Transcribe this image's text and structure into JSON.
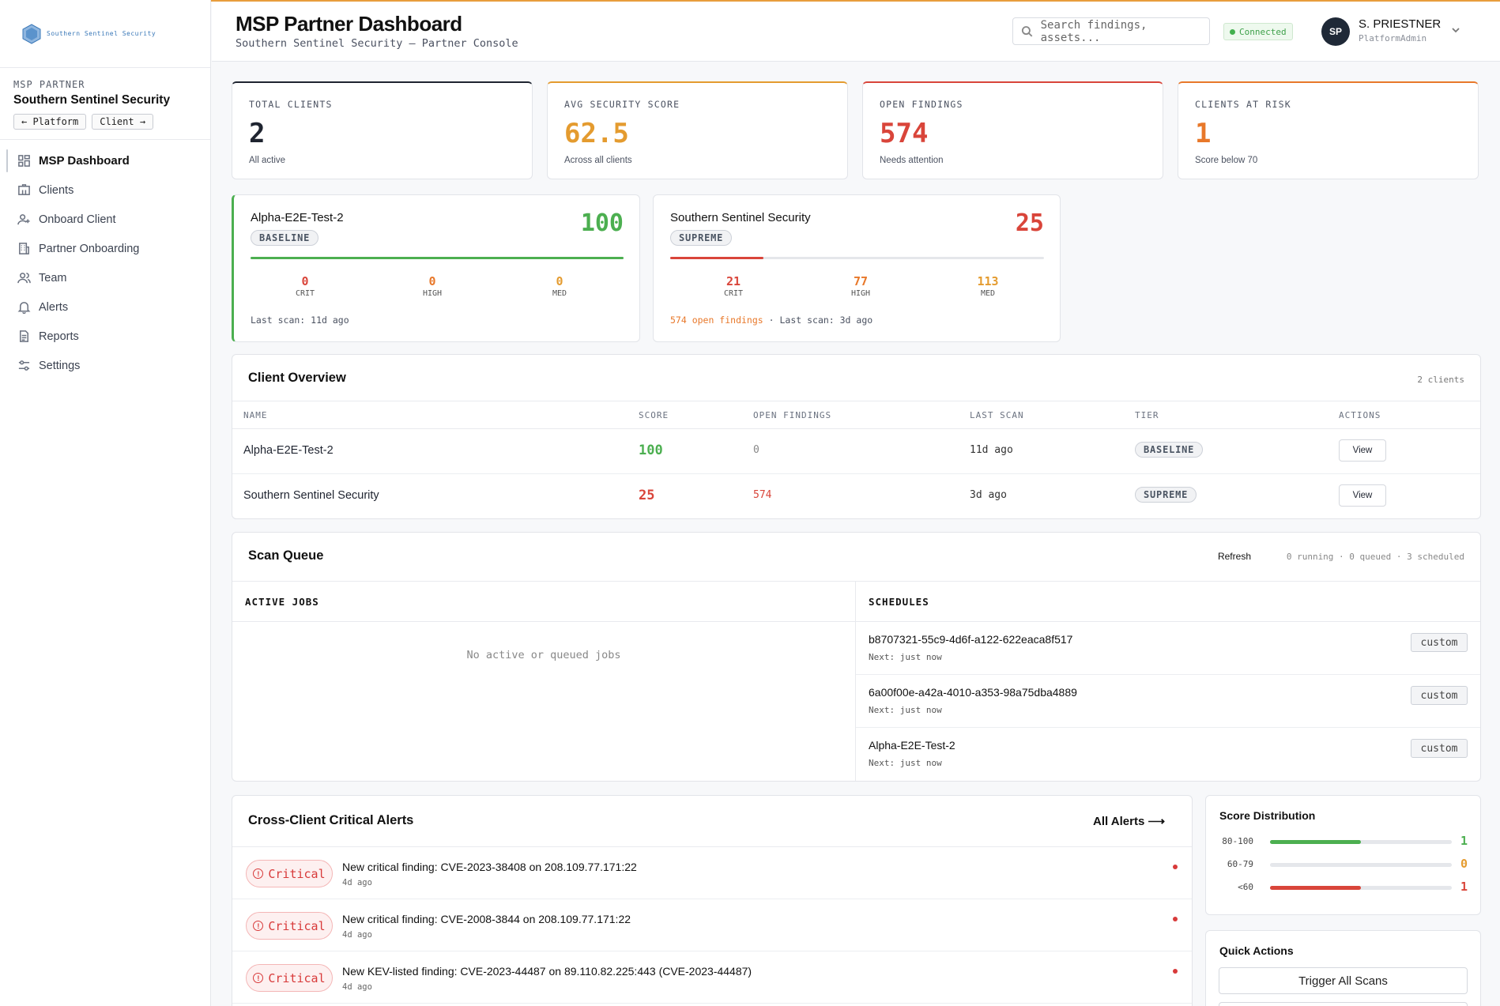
{
  "brand": {
    "logo_text": "Southern Sentinel Security"
  },
  "sidebar": {
    "partner_label": "MSP PARTNER",
    "partner_name": "Southern Sentinel Security",
    "platform_btn": "← Platform",
    "client_btn": "Client →",
    "items": [
      {
        "label": "MSP Dashboard",
        "icon": "grid-icon",
        "active": true
      },
      {
        "label": "Clients",
        "icon": "building-icon"
      },
      {
        "label": "Onboard Client",
        "icon": "user-plus-icon"
      },
      {
        "label": "Partner Onboarding",
        "icon": "office-icon"
      },
      {
        "label": "Team",
        "icon": "users-icon"
      },
      {
        "label": "Alerts",
        "icon": "bell-icon"
      },
      {
        "label": "Reports",
        "icon": "document-icon"
      },
      {
        "label": "Settings",
        "icon": "sliders-icon"
      }
    ]
  },
  "header": {
    "title": "MSP Partner Dashboard",
    "subtitle": "Southern Sentinel Security — Partner Console",
    "search_placeholder": "Search findings, assets...",
    "status": "Connected",
    "user_initials": "SP",
    "user_name": "S. PRIESTNER",
    "user_role": "PlatformAdmin"
  },
  "colors": {
    "green": "#4caf50",
    "amber": "#e49b2f",
    "red": "#d9453a",
    "orange": "#e8782a",
    "dark": "#1f2430"
  },
  "stats": [
    {
      "label": "TOTAL CLIENTS",
      "value": "2",
      "sub": "All active"
    },
    {
      "label": "AVG SECURITY SCORE",
      "value": "62.5",
      "sub": "Across all clients"
    },
    {
      "label": "OPEN FINDINGS",
      "value": "574",
      "sub": "Needs attention"
    },
    {
      "label": "CLIENTS AT RISK",
      "value": "1",
      "sub": "Score below 70"
    }
  ],
  "client_cards": [
    {
      "name": "Alpha-E2E-Test-2",
      "tier": "BASELINE",
      "score": "100",
      "score_pct": 100,
      "crit": "0",
      "high": "0",
      "med": "0",
      "crit_label": "CRIT",
      "high_label": "HIGH",
      "med_label": "MED",
      "open_findings": "",
      "last_scan": "Last scan: 11d ago"
    },
    {
      "name": "Southern Sentinel Security",
      "tier": "SUPREME",
      "score": "25",
      "score_pct": 25,
      "crit": "21",
      "high": "77",
      "med": "113",
      "crit_label": "CRIT",
      "high_label": "HIGH",
      "med_label": "MED",
      "open_findings": "574 open findings",
      "last_scan": " · Last scan: 3d ago"
    }
  ],
  "overview": {
    "title": "Client Overview",
    "count": "2 clients",
    "columns": [
      "NAME",
      "SCORE",
      "OPEN FINDINGS",
      "LAST SCAN",
      "TIER",
      "ACTIONS"
    ],
    "rows": [
      {
        "name": "Alpha-E2E-Test-2",
        "score": "100",
        "findings": "0",
        "last_scan": "11d ago",
        "tier": "BASELINE",
        "action": "View"
      },
      {
        "name": "Southern Sentinel Security",
        "score": "25",
        "findings": "574",
        "last_scan": "3d ago",
        "tier": "SUPREME",
        "action": "View"
      }
    ]
  },
  "scan_queue": {
    "title": "Scan Queue",
    "refresh": "Refresh",
    "summary": "0 running · 0 queued · 3 scheduled",
    "active_jobs_label": "ACTIVE JOBS",
    "empty_text": "No active or queued jobs",
    "schedules_label": "SCHEDULES",
    "schedules": [
      {
        "id": "b8707321-55c9-4d6f-a122-622eaca8f517",
        "next": "Next: just now",
        "type": "custom"
      },
      {
        "id": "6a00f00e-a42a-4010-a353-98a75dba4889",
        "next": "Next: just now",
        "type": "custom"
      },
      {
        "id": "Alpha-E2E-Test-2",
        "next": "Next: just now",
        "type": "custom"
      }
    ]
  },
  "alerts": {
    "title": "Cross-Client Critical Alerts",
    "all_link": "All Alerts ⟶",
    "items": [
      {
        "severity": "Critical",
        "message": "New critical finding: CVE-2023-38408 on 208.109.77.171:22",
        "time": "4d ago"
      },
      {
        "severity": "Critical",
        "message": "New critical finding: CVE-2008-3844 on 208.109.77.171:22",
        "time": "4d ago"
      },
      {
        "severity": "Critical",
        "message": "New KEV-listed finding: CVE-2023-44487 on 89.110.82.225:443 (CVE-2023-44487)",
        "time": "4d ago"
      }
    ]
  },
  "distribution": {
    "title": "Score Distribution",
    "rows": [
      {
        "label": "80-100",
        "count": "1",
        "fraction": 0.5,
        "color": "#4caf50"
      },
      {
        "label": "60-79",
        "count": "0",
        "fraction": 0,
        "color": "#e49b2f"
      },
      {
        "label": "<60",
        "count": "1",
        "fraction": 0.5,
        "color": "#d9453a"
      }
    ]
  },
  "quick_actions": {
    "title": "Quick Actions",
    "buttons": [
      "Trigger All Scans"
    ]
  }
}
